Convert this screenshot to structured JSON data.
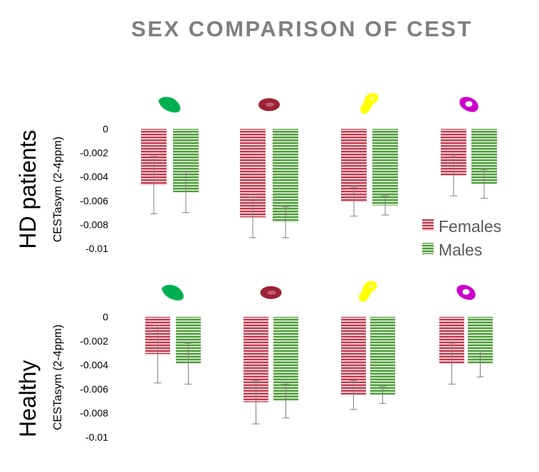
{
  "chart_data": {
    "type": "bar",
    "title": "SEX COMPARISON OF CEST",
    "ylabel": "CESTasym (2-4ppm)",
    "ylim": [
      -0.01,
      0
    ],
    "yticks": [
      "0",
      "-0.002",
      "-0.004",
      "-0.006",
      "-0.008",
      "-0.01"
    ],
    "legend": {
      "placement": "right",
      "entries": [
        "Females",
        "Males"
      ]
    },
    "categories": [
      "green-region",
      "darkred-region",
      "yellow-region",
      "magenta-region"
    ],
    "colors": {
      "females": "#c0394b",
      "females_light": "#f3c5cb",
      "males": "#4e9a3c",
      "males_light": "#c9e3be",
      "title": "#7f7f7f",
      "error": "#7f7f7f",
      "icon_green": "#00b050",
      "icon_darkred": "#9b2335",
      "icon_yellow": "#ffff00",
      "icon_magenta": "#cc00cc"
    },
    "panels": [
      {
        "label": "HD patients",
        "series": [
          {
            "name": "Females",
            "values": [
              -0.0047,
              -0.0074,
              -0.0061,
              -0.0039
            ],
            "errors": [
              0.0024,
              0.0017,
              0.0012,
              0.0017
            ]
          },
          {
            "name": "Males",
            "values": [
              -0.0053,
              -0.0078,
              -0.0064,
              -0.0046
            ],
            "errors": [
              0.0017,
              0.0013,
              0.0008,
              0.0012
            ]
          }
        ]
      },
      {
        "label": "Healthy",
        "series": [
          {
            "name": "Females",
            "values": [
              -0.0031,
              -0.0071,
              -0.0065,
              -0.0039
            ],
            "errors": [
              0.0024,
              0.0018,
              0.0012,
              0.0017
            ]
          },
          {
            "name": "Males",
            "values": [
              -0.0039,
              -0.007,
              -0.0065,
              -0.0039
            ],
            "errors": [
              0.0017,
              0.0014,
              0.0007,
              0.0011
            ]
          }
        ]
      }
    ]
  }
}
